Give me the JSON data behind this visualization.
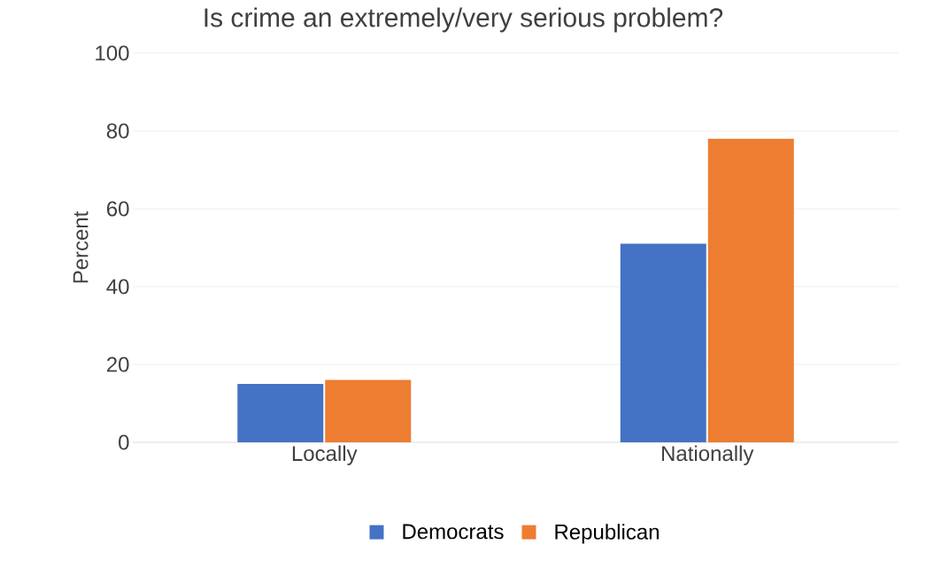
{
  "chart_data": {
    "type": "bar",
    "title": "Is crime an extremely/very serious problem?",
    "ylabel": "Percent",
    "categories": [
      "Locally",
      "Nationally"
    ],
    "series": [
      {
        "name": "Democrats",
        "color": "#4472c4",
        "values": [
          15,
          51
        ]
      },
      {
        "name": "Republican",
        "color": "#ed7d31",
        "values": [
          16,
          78
        ]
      }
    ],
    "ylim": [
      0,
      100
    ],
    "yticks": [
      0,
      20,
      40,
      60,
      80,
      100
    ],
    "grid": "y",
    "legend": "bottom"
  }
}
